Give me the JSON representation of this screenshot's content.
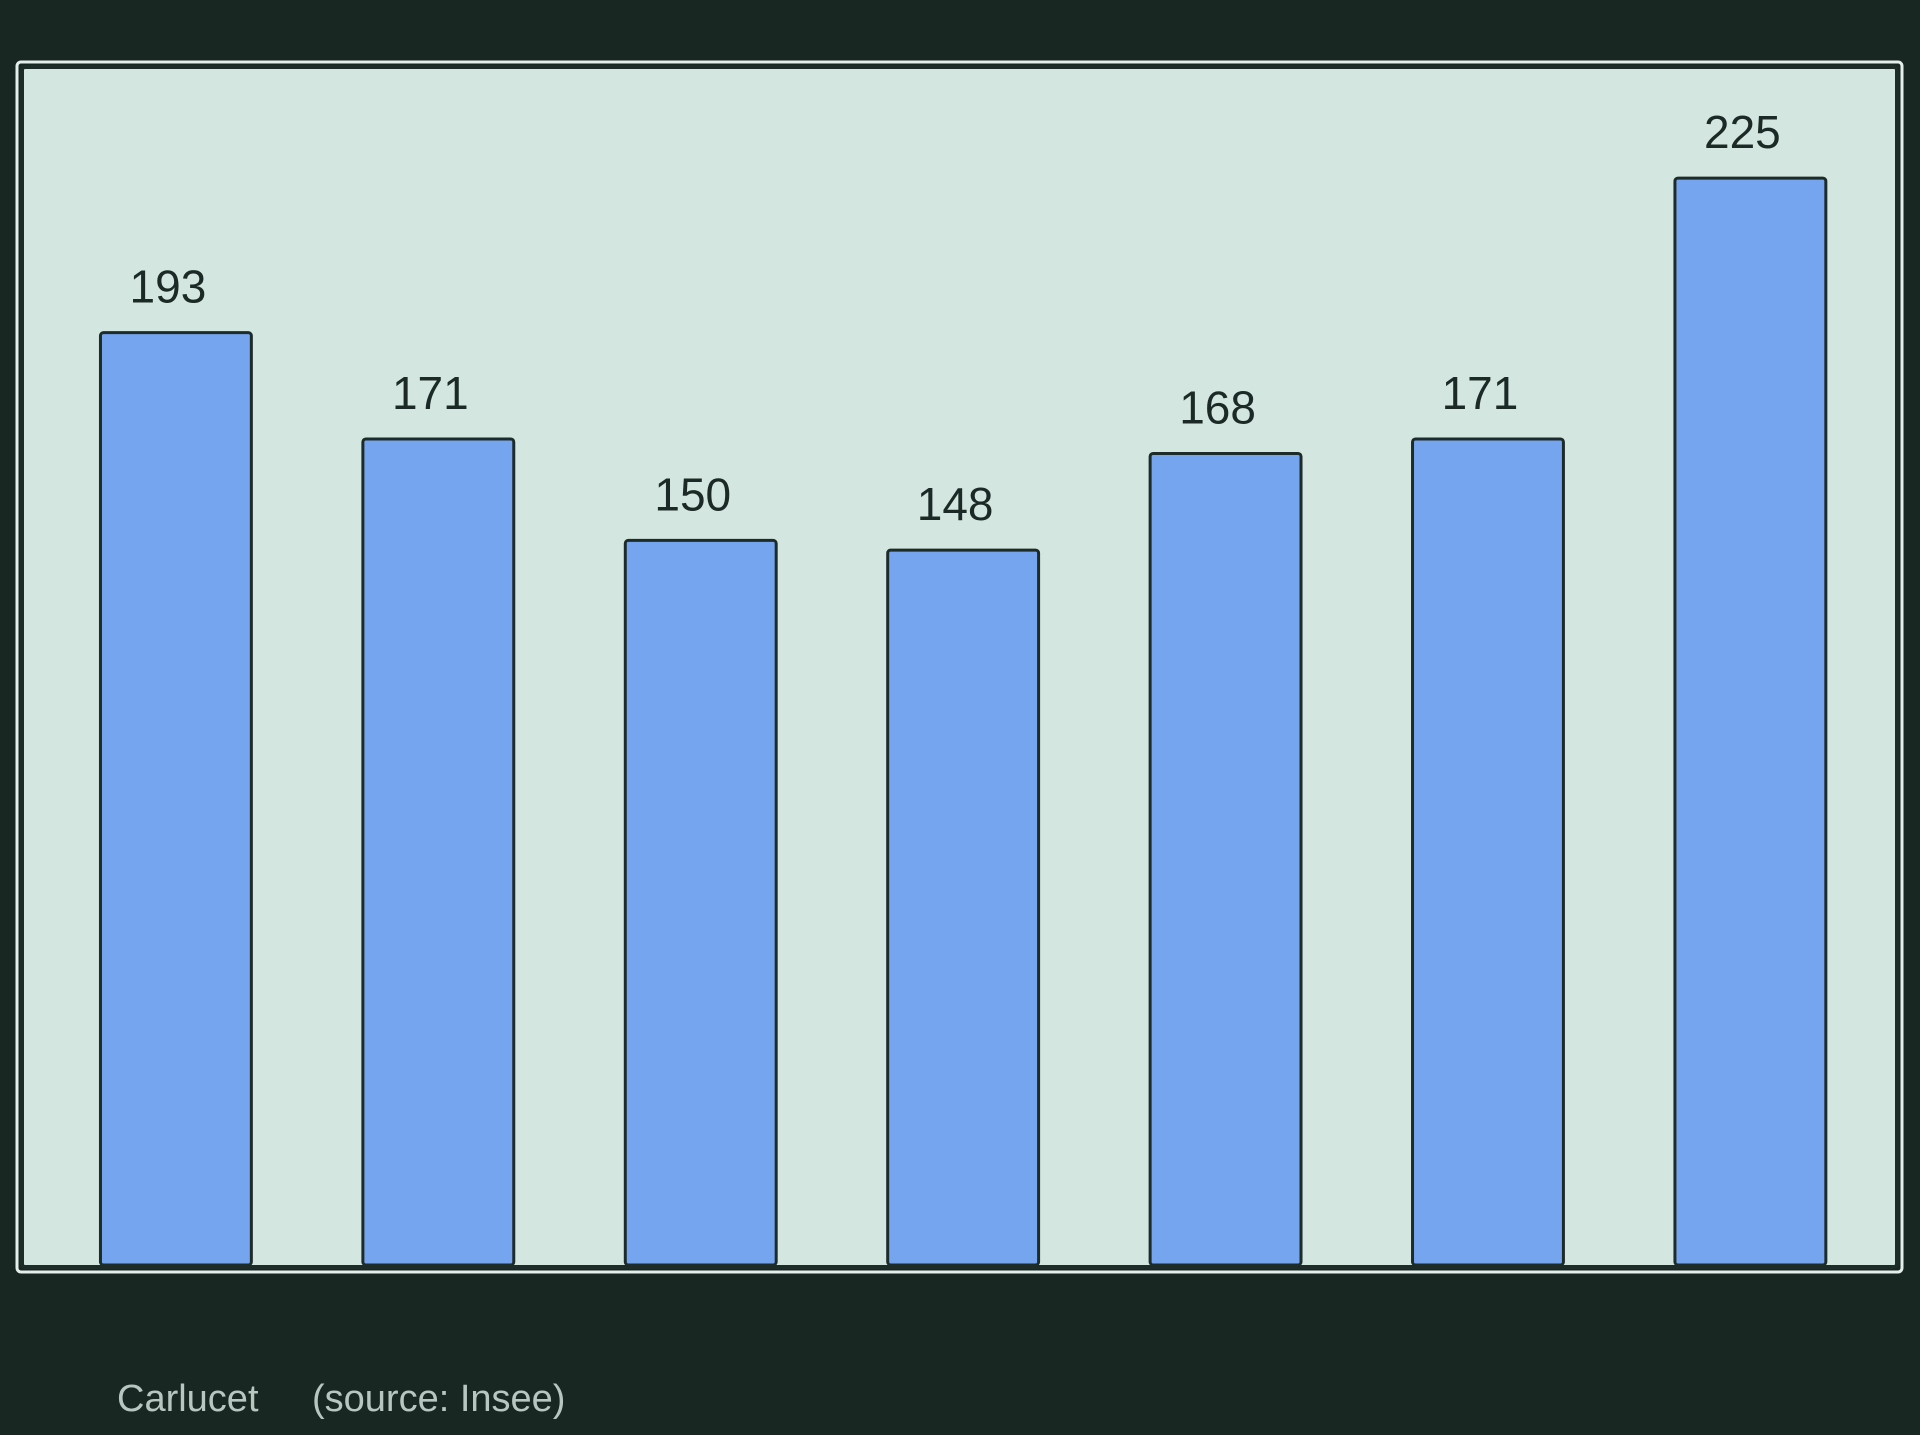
{
  "chart_data": {
    "type": "bar",
    "categories": [
      null,
      null,
      null,
      null,
      null,
      null,
      null
    ],
    "values": [
      193,
      171,
      150,
      148,
      168,
      171,
      225
    ],
    "color": "#76a5f0",
    "ylim": [
      0,
      248
    ],
    "caption": "Carlucet",
    "source": "(source: Insee)"
  }
}
